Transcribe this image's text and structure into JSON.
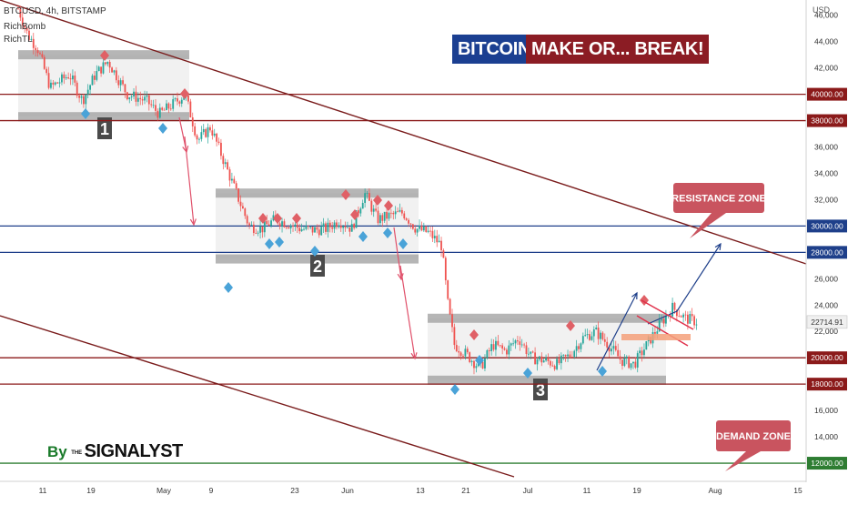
{
  "symbol_label": "BTCUSD, 4h, BITSTAMP",
  "indicators": [
    "RichBomb",
    "RichTL"
  ],
  "title_left": "BITCOIN",
  "title_right": "MAKE OR... BREAK!",
  "resistance_label": "RESISTANCE ZONE",
  "demand_label": "DEMAND ZONE",
  "brand": {
    "by": "By",
    "the": "THE",
    "name": "SIGNALYST"
  },
  "currency": "USD",
  "last_price": "22714.91",
  "colors": {
    "red_level": "#8b1a1a",
    "blue_level": "#1e3f8a",
    "green_level": "#2e7d32",
    "callout": "#c9545f",
    "zone_box": "#e6e6e6",
    "zone_border": "#9e9e9e",
    "bull": "#26a69a",
    "bear": "#ef5350",
    "diamond_red": "#e06066",
    "diamond_blue": "#4aa3d8"
  },
  "chart_data": {
    "type": "candlestick",
    "title": "BTCUSD, 4h, BITSTAMP",
    "ylabel": "USD",
    "ylim": [
      10000,
      48000
    ],
    "y_ticks": [
      12000,
      14000,
      16000,
      18000,
      20000,
      22000,
      24000,
      26000,
      28000,
      30000,
      32000,
      34000,
      36000,
      38000,
      40000,
      42000,
      44000,
      46000
    ],
    "x_ticks": [
      "11",
      "19",
      "May",
      "9",
      "23",
      "Jun",
      "13",
      "21",
      "Jul",
      "11",
      "19",
      "Aug",
      "15"
    ],
    "highlighted_levels": [
      {
        "price": "40000.00",
        "color": "red"
      },
      {
        "price": "38000.00",
        "color": "red"
      },
      {
        "price": "30000.00",
        "color": "blue"
      },
      {
        "price": "28000.00",
        "color": "blue"
      },
      {
        "price": "20000.00",
        "color": "red"
      },
      {
        "price": "18000.00",
        "color": "red"
      },
      {
        "price": "12000.00",
        "color": "green"
      }
    ],
    "last_price": 22714.91,
    "ranges": [
      {
        "label": "1",
        "high": 43000,
        "low": 38300
      },
      {
        "label": "2",
        "high": 32500,
        "low": 27500
      },
      {
        "label": "3",
        "high": 23000,
        "low": 18300
      }
    ],
    "path": [
      [
        0,
        46500
      ],
      [
        1.5,
        44500
      ],
      [
        3,
        43500
      ],
      [
        5,
        40500
      ],
      [
        8,
        41500
      ],
      [
        10,
        39500
      ],
      [
        12,
        41500
      ],
      [
        14,
        42500
      ],
      [
        17,
        40000
      ],
      [
        20,
        39500
      ],
      [
        22,
        38500
      ],
      [
        24,
        39200
      ],
      [
        26,
        40000
      ],
      [
        28,
        36500
      ],
      [
        30,
        37500
      ],
      [
        32,
        35000
      ],
      [
        34,
        32500
      ],
      [
        36,
        30000
      ],
      [
        38,
        29800
      ],
      [
        40,
        30500
      ],
      [
        42,
        30200
      ],
      [
        44,
        29800
      ],
      [
        46,
        29700
      ],
      [
        48,
        29800
      ],
      [
        50,
        30400
      ],
      [
        52,
        29800
      ],
      [
        54,
        32500
      ],
      [
        56,
        30500
      ],
      [
        58,
        30800
      ],
      [
        60,
        31000
      ],
      [
        62,
        29800
      ],
      [
        64,
        29500
      ],
      [
        66,
        28500
      ],
      [
        67,
        24000
      ],
      [
        68,
        21000
      ],
      [
        70,
        20200
      ],
      [
        72,
        19200
      ],
      [
        74,
        21000
      ],
      [
        76,
        20500
      ],
      [
        78,
        21500
      ],
      [
        80,
        20000
      ],
      [
        82,
        19800
      ],
      [
        84,
        19500
      ],
      [
        86,
        20200
      ],
      [
        88,
        21500
      ],
      [
        90,
        22000
      ],
      [
        92,
        21000
      ],
      [
        94,
        19800
      ],
      [
        96,
        19500
      ],
      [
        98,
        21000
      ],
      [
        100,
        22500
      ],
      [
        102,
        23800
      ],
      [
        104,
        23000
      ],
      [
        106,
        22700
      ]
    ]
  }
}
